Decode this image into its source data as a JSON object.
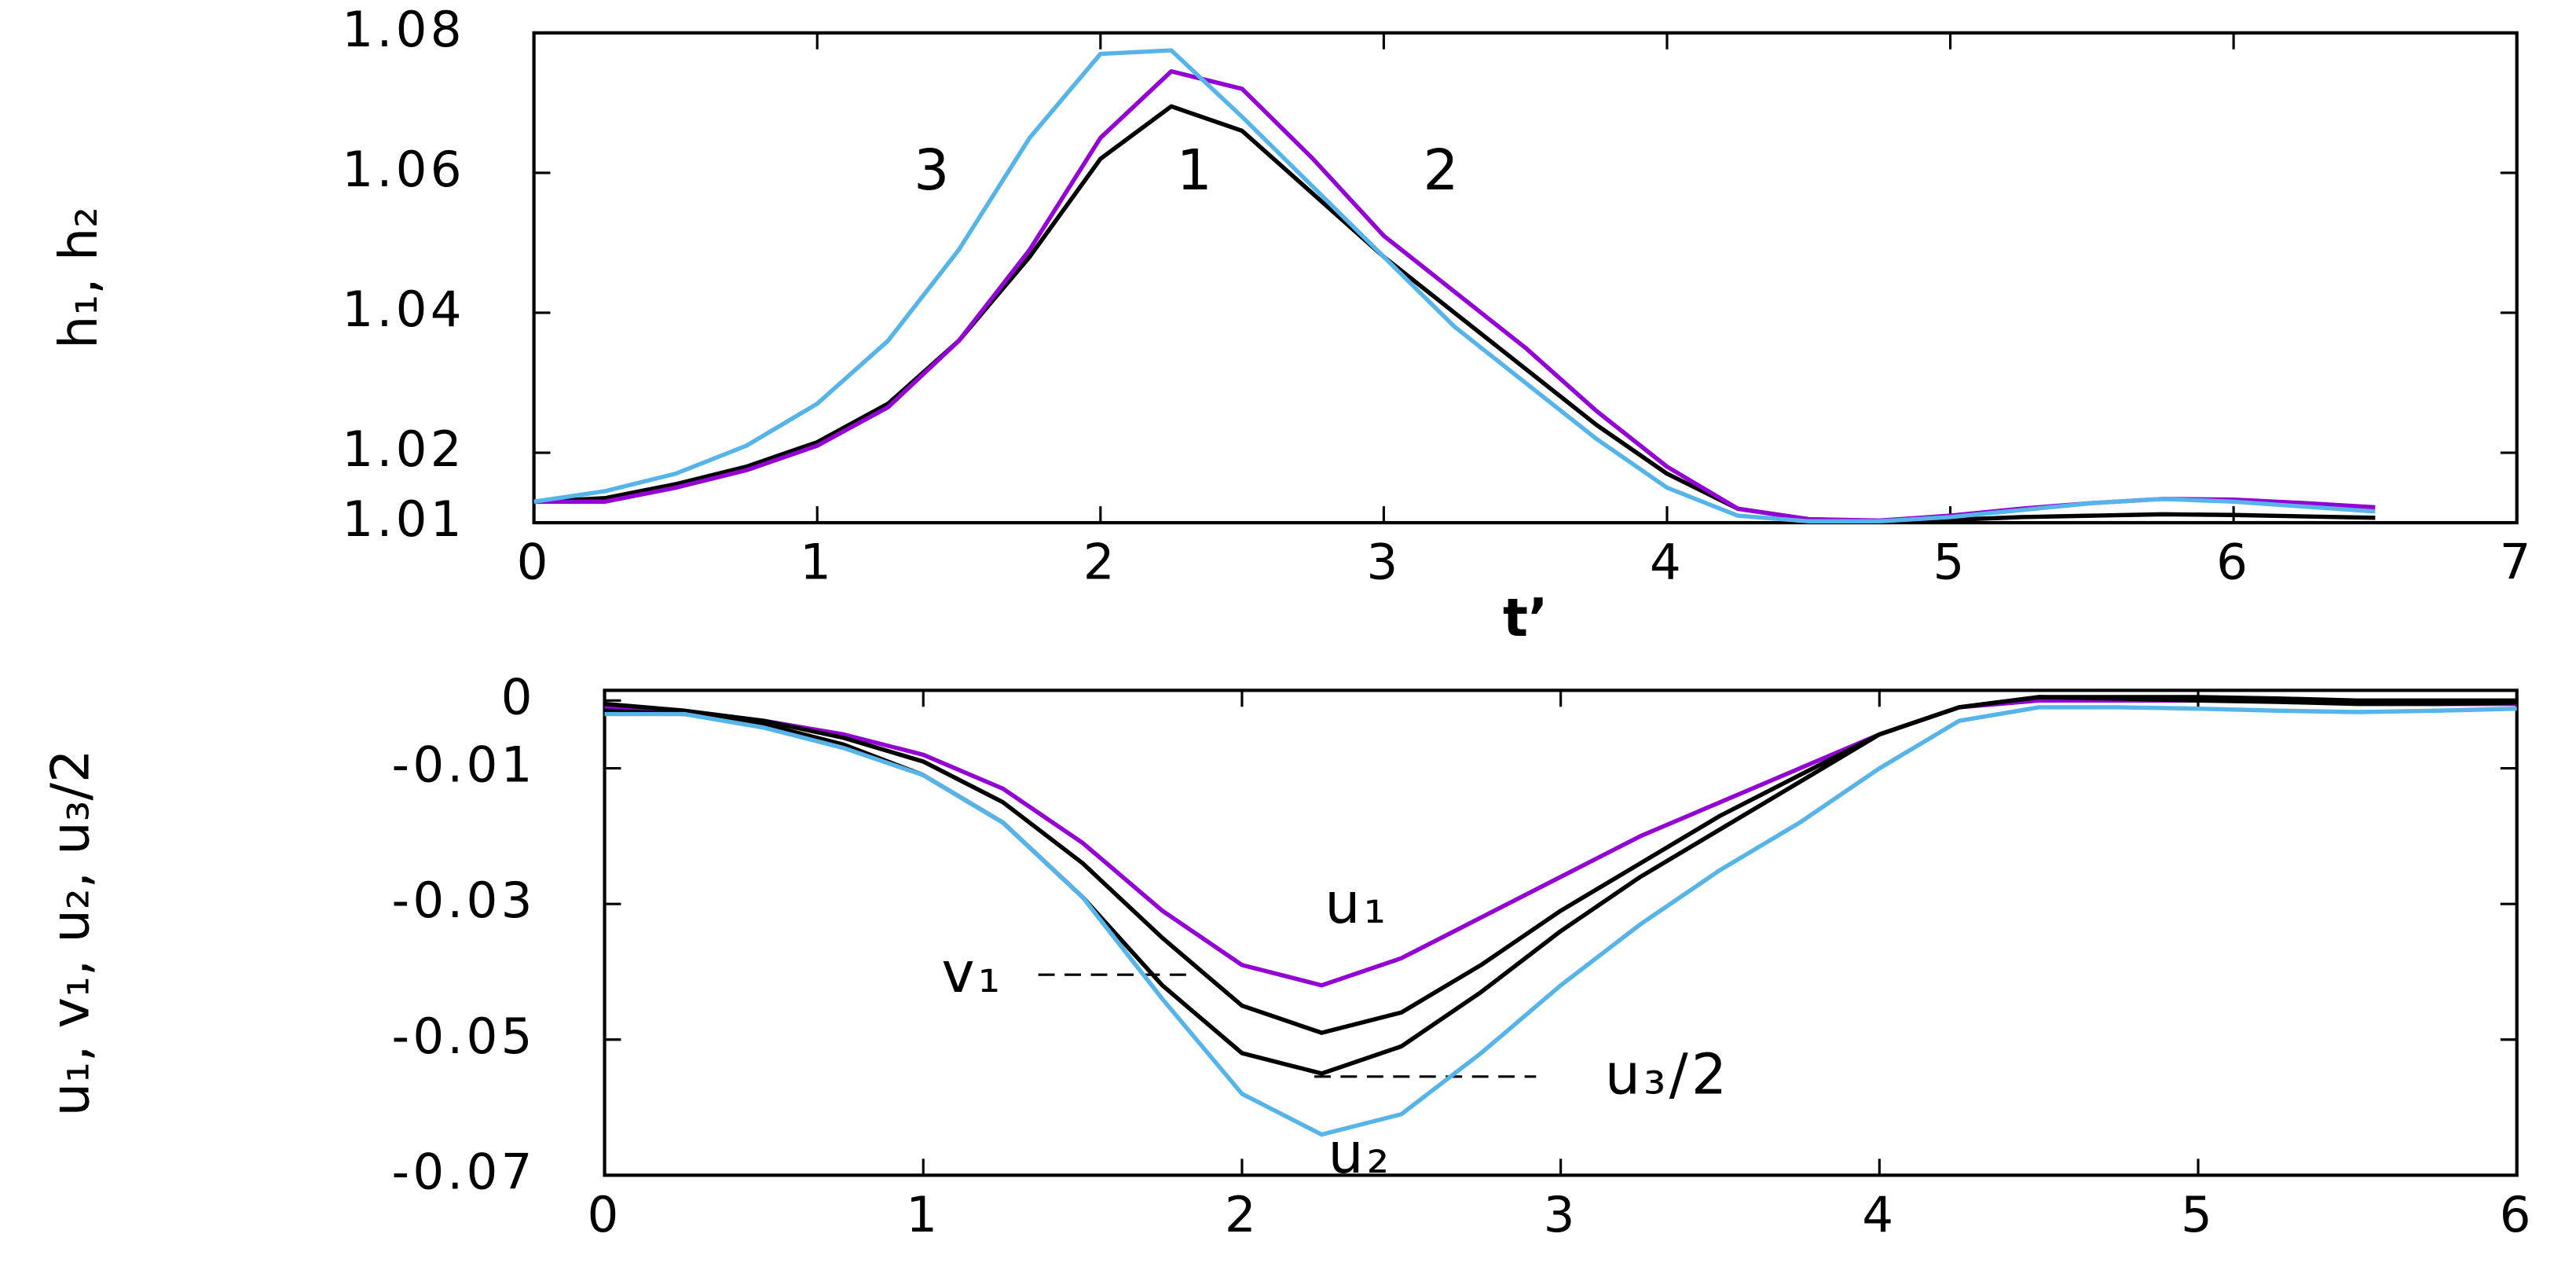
{
  "chart_data": [
    {
      "type": "line",
      "xlabel": "t’",
      "ylabel": "h₁, h₂",
      "xlim": [
        0,
        7
      ],
      "ylim": [
        1.01,
        1.08
      ],
      "xticks": [
        0,
        1,
        2,
        3,
        4,
        5,
        6,
        7
      ],
      "yticks": [
        1.01,
        1.02,
        1.04,
        1.06,
        1.08
      ],
      "x": [
        0,
        0.25,
        0.5,
        0.75,
        1,
        1.25,
        1.5,
        1.75,
        2,
        2.25,
        2.5,
        2.75,
        3,
        3.25,
        3.5,
        3.75,
        4,
        4.25,
        4.5,
        4.75,
        5,
        5.25,
        5.5,
        5.75,
        6,
        6.25,
        6.5
      ],
      "series": [
        {
          "name": "1",
          "color": "#000000",
          "values": [
            1.013,
            1.0135,
            1.0155,
            1.018,
            1.0215,
            1.027,
            1.036,
            1.048,
            1.062,
            1.0695,
            1.066,
            1.057,
            1.048,
            1.04,
            1.032,
            1.024,
            1.017,
            1.012,
            1.0105,
            1.0102,
            1.0104,
            1.0108,
            1.011,
            1.0112,
            1.0111,
            1.0109,
            1.0107
          ]
        },
        {
          "name": "2",
          "color": "#9400d3",
          "values": [
            1.013,
            1.013,
            1.015,
            1.0175,
            1.021,
            1.0265,
            1.036,
            1.049,
            1.065,
            1.0745,
            1.072,
            1.062,
            1.051,
            1.043,
            1.035,
            1.026,
            1.018,
            1.012,
            1.0105,
            1.0103,
            1.011,
            1.012,
            1.0128,
            1.0134,
            1.0133,
            1.0128,
            1.0122
          ]
        },
        {
          "name": "3",
          "color": "#56b4e9",
          "values": [
            1.013,
            1.0145,
            1.017,
            1.021,
            1.027,
            1.036,
            1.049,
            1.065,
            1.077,
            1.0775,
            1.068,
            1.058,
            1.048,
            1.038,
            1.03,
            1.022,
            1.015,
            1.011,
            1.0102,
            1.0102,
            1.0108,
            1.0118,
            1.0128,
            1.0134,
            1.013,
            1.0123,
            1.0116
          ]
        }
      ]
    },
    {
      "type": "line",
      "ylabel": "u₁, v₁, u₂, u₃/2",
      "xlim": [
        0,
        6
      ],
      "ylim": [
        -0.07,
        0.0015
      ],
      "xticks": [
        0,
        1,
        2,
        3,
        4,
        5,
        6
      ],
      "yticks": [
        0,
        -0.01,
        -0.03,
        -0.05,
        -0.07
      ],
      "x": [
        0,
        0.25,
        0.5,
        0.75,
        1,
        1.25,
        1.5,
        1.75,
        2,
        2.25,
        2.5,
        2.75,
        3,
        3.25,
        3.5,
        3.75,
        4,
        4.25,
        4.5,
        4.75,
        5,
        5.25,
        5.5,
        5.75,
        6
      ],
      "series": [
        {
          "name": "u₁",
          "color": "#9400d3",
          "values": [
            -0.001,
            -0.0015,
            -0.003,
            -0.005,
            -0.008,
            -0.013,
            -0.021,
            -0.031,
            -0.039,
            -0.042,
            -0.038,
            -0.032,
            -0.026,
            -0.02,
            -0.015,
            -0.01,
            -0.005,
            -0.001,
            0,
            0,
            0,
            0,
            -0.0003,
            -0.0005,
            -0.0005
          ]
        },
        {
          "name": "v₁",
          "color": "#000000",
          "values": [
            -0.0005,
            -0.0015,
            -0.003,
            -0.0055,
            -0.009,
            -0.015,
            -0.024,
            -0.035,
            -0.045,
            -0.049,
            -0.046,
            -0.039,
            -0.031,
            -0.024,
            -0.017,
            -0.011,
            -0.005,
            -0.001,
            0.0005,
            0.0005,
            0.0005,
            0.0003,
            0,
            0,
            0
          ]
        },
        {
          "name": "u₃/2",
          "color": "#000000",
          "values": [
            -0.0015,
            -0.002,
            -0.0035,
            -0.0065,
            -0.011,
            -0.018,
            -0.029,
            -0.042,
            -0.052,
            -0.055,
            -0.051,
            -0.043,
            -0.034,
            -0.026,
            -0.019,
            -0.012,
            -0.005,
            -0.001,
            0.0005,
            0.0003,
            0,
            -0.0002,
            -0.0005,
            -0.0005,
            -0.0003
          ]
        },
        {
          "name": "u₂",
          "color": "#56b4e9",
          "values": [
            -0.002,
            -0.002,
            -0.004,
            -0.007,
            -0.011,
            -0.018,
            -0.029,
            -0.044,
            -0.058,
            -0.064,
            -0.061,
            -0.052,
            -0.042,
            -0.033,
            -0.025,
            -0.018,
            -0.01,
            -0.003,
            -0.001,
            -0.001,
            -0.0012,
            -0.0015,
            -0.0017,
            -0.0015,
            -0.0012
          ]
        }
      ]
    }
  ]
}
